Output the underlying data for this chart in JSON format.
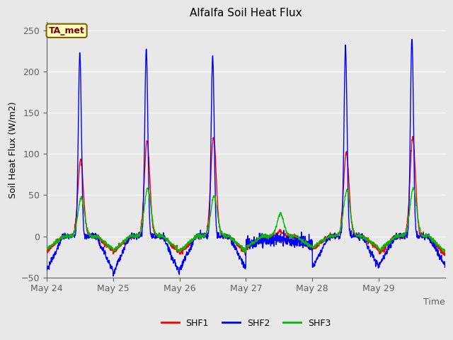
{
  "title": "Alfalfa Soil Heat Flux",
  "ylabel": "Soil Heat Flux (W/m2)",
  "xlabel": "Time",
  "annotation": "TA_met",
  "ylim": [
    -50,
    260
  ],
  "xlim": [
    0,
    6
  ],
  "colors": {
    "SHF1": "#FF0000",
    "SHF2": "#0000FF",
    "SHF3": "#00BB00"
  },
  "bg_color": "#E8E8E8",
  "fig_bg": "#E8E8E8",
  "grid_color": "#FFFFFF",
  "tick_color": "#606060",
  "spine_color": "#606060",
  "x_tick_positions": [
    0,
    1,
    2,
    3,
    4,
    5
  ],
  "x_tick_labels": [
    "May 24",
    "May 25",
    "May 26",
    "May 27",
    "May 28",
    "May 29"
  ],
  "y_ticks": [
    -50,
    0,
    50,
    100,
    150,
    200,
    250
  ],
  "title_fontsize": 11,
  "label_fontsize": 9,
  "tick_fontsize": 9,
  "linewidth": 1.0,
  "annotation_facecolor": "#FFFFC0",
  "annotation_edgecolor": "#806000",
  "annotation_textcolor": "#800000",
  "legend_labels": [
    "SHF1",
    "SHF2",
    "SHF3"
  ]
}
